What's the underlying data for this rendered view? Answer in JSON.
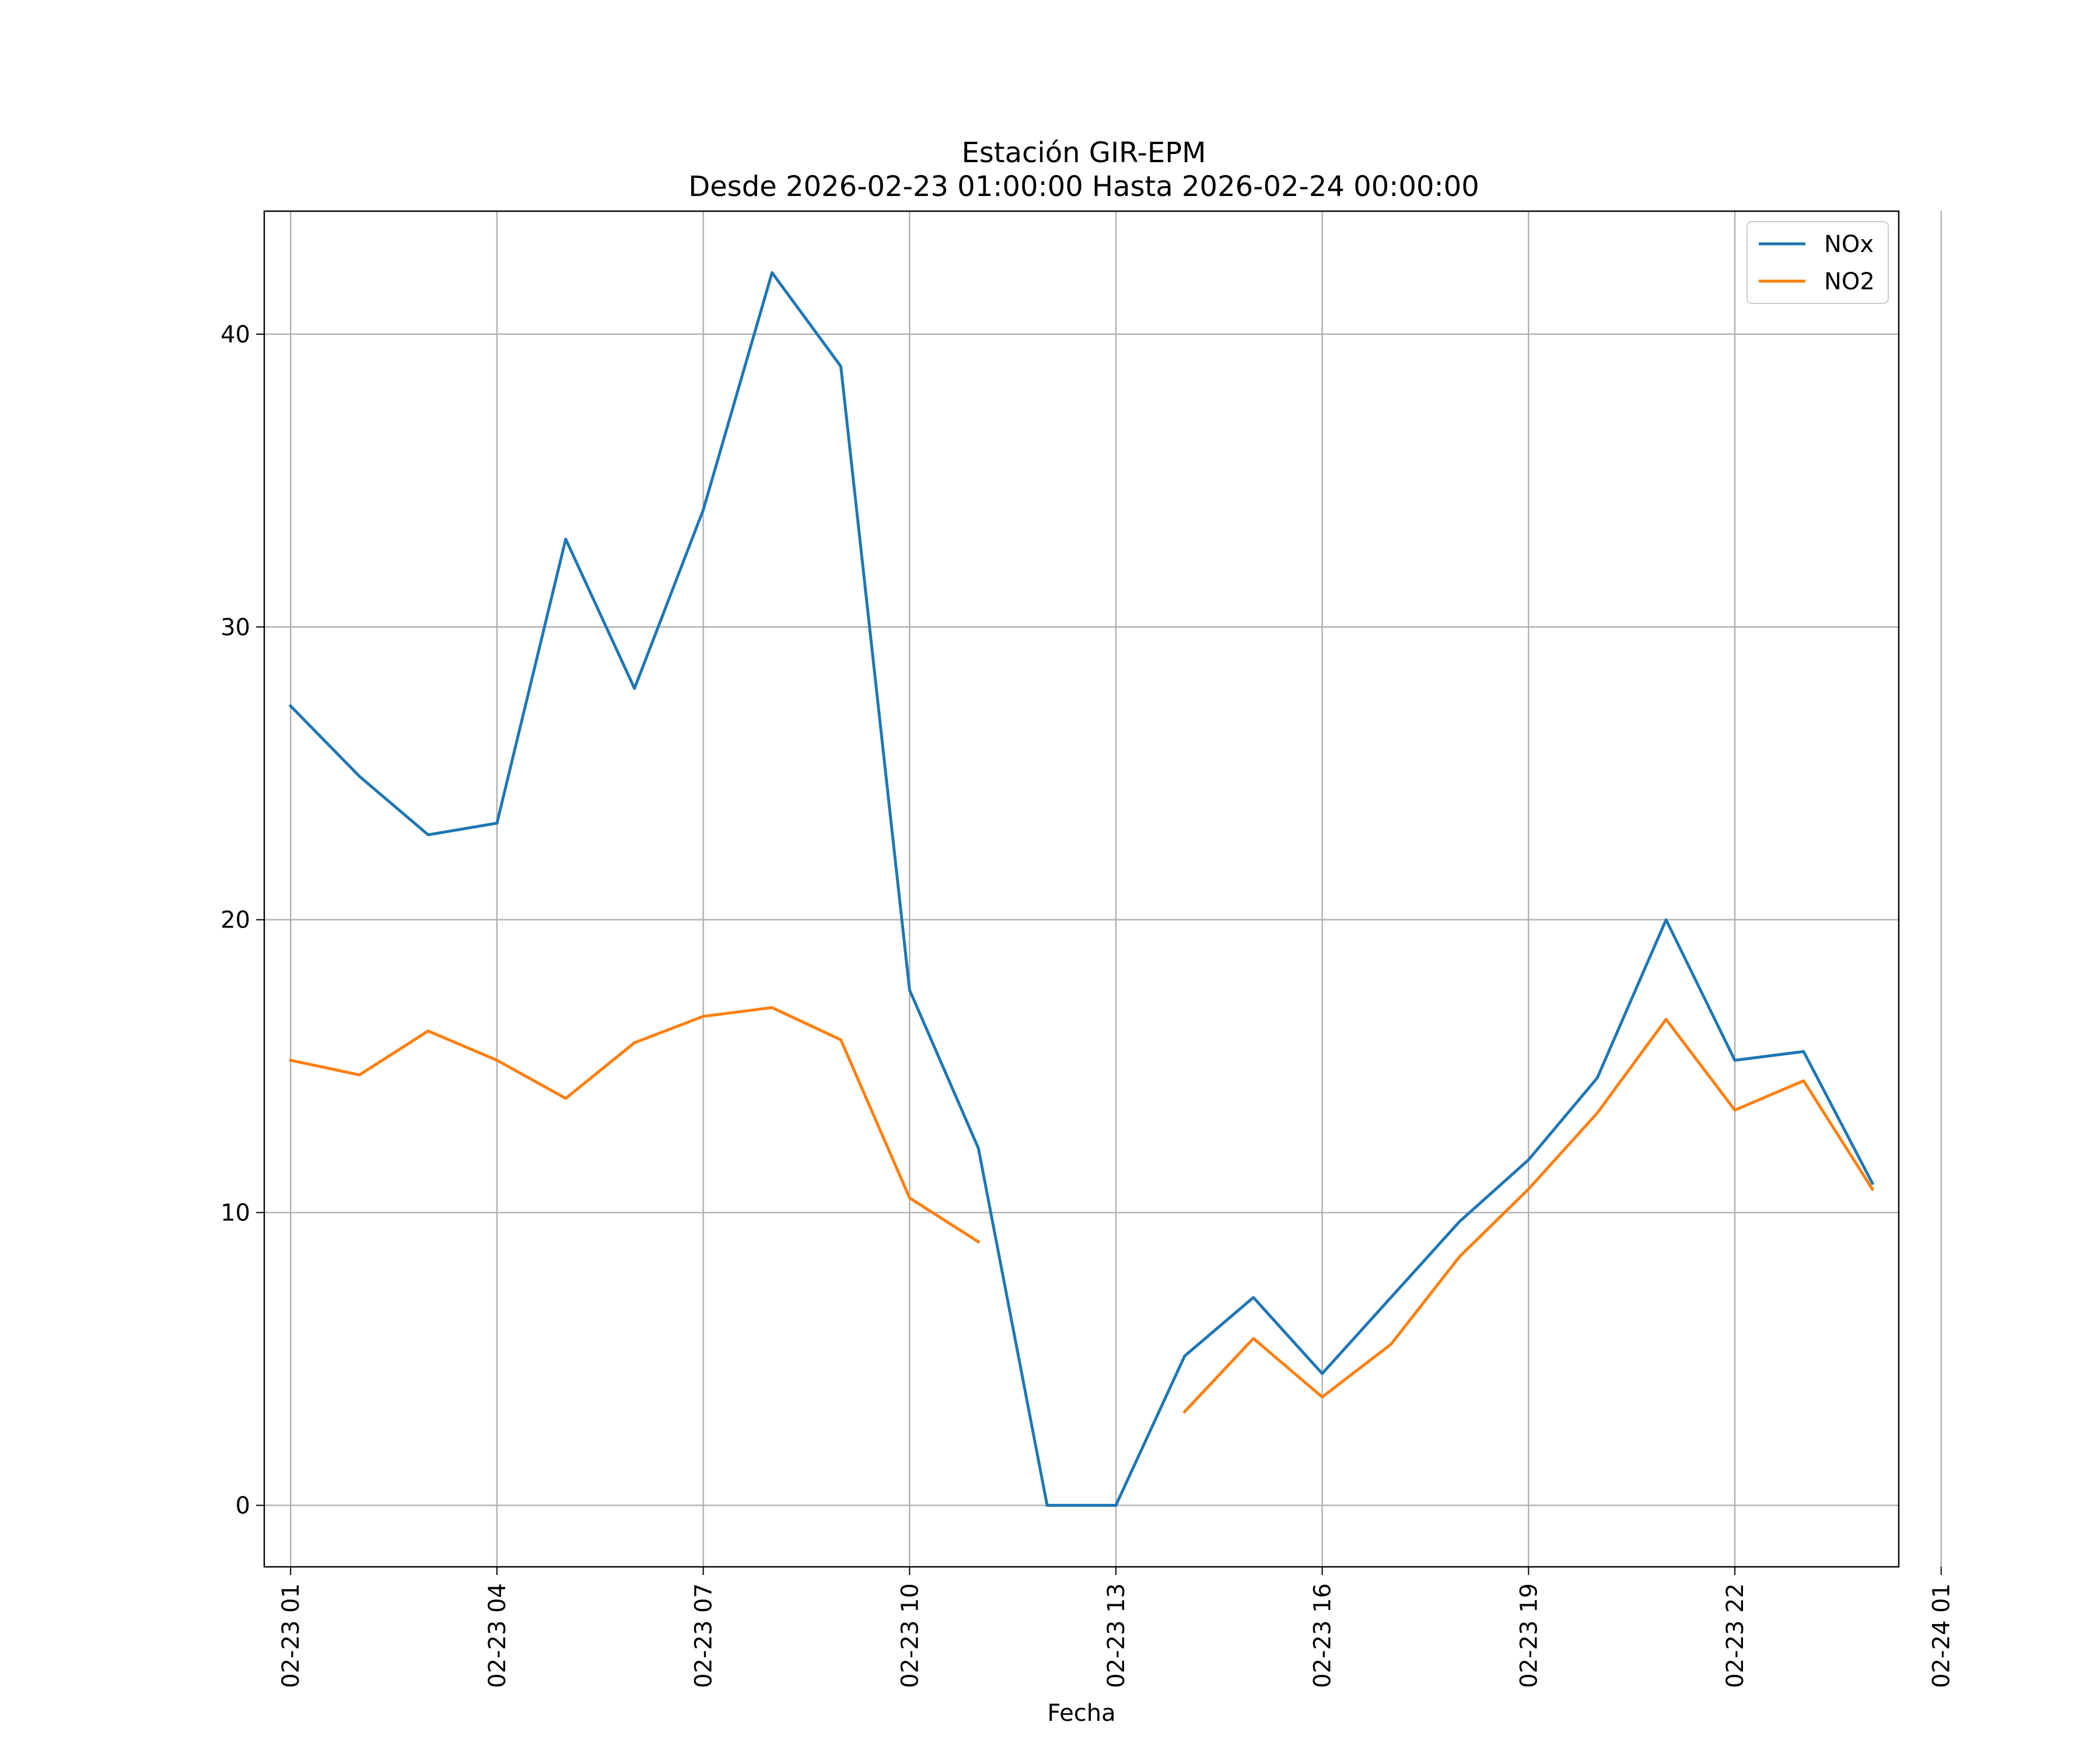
{
  "chart_data": {
    "type": "line",
    "title": "Estación GIR-EPM",
    "subtitle": "Desde 2026-02-23 01:00:00 Hasta 2026-02-24 00:00:00",
    "xlabel": "Fecha",
    "ylabel": "",
    "x": [
      "2026-02-23 01:00",
      "2026-02-23 02:00",
      "2026-02-23 03:00",
      "2026-02-23 04:00",
      "2026-02-23 05:00",
      "2026-02-23 06:00",
      "2026-02-23 07:00",
      "2026-02-23 08:00",
      "2026-02-23 09:00",
      "2026-02-23 10:00",
      "2026-02-23 11:00",
      "2026-02-23 12:00",
      "2026-02-23 13:00",
      "2026-02-23 14:00",
      "2026-02-23 15:00",
      "2026-02-23 16:00",
      "2026-02-23 17:00",
      "2026-02-23 18:00",
      "2026-02-23 19:00",
      "2026-02-23 20:00",
      "2026-02-23 21:00",
      "2026-02-23 22:00",
      "2026-02-23 23:00",
      "2026-02-24 00:00"
    ],
    "xlim": [
      "2026-02-23 00:37",
      "2026-02-24 00:23"
    ],
    "ylim": [
      -2.1,
      44.2
    ],
    "xticks": [
      "2026-02-23 01:00",
      "2026-02-23 04:00",
      "2026-02-23 07:00",
      "2026-02-23 10:00",
      "2026-02-23 13:00",
      "2026-02-23 16:00",
      "2026-02-23 19:00",
      "2026-02-23 22:00",
      "2026-02-24 01:00"
    ],
    "xtick_labels": [
      "02-23 01",
      "02-23 04",
      "02-23 07",
      "02-23 10",
      "02-23 13",
      "02-23 16",
      "02-23 19",
      "02-23 22",
      "02-24 01"
    ],
    "yticks": [
      0,
      10,
      20,
      30,
      40
    ],
    "ytick_labels": [
      "0",
      "10",
      "20",
      "30",
      "40"
    ],
    "grid": true,
    "legend_position": "top-right",
    "series": [
      {
        "name": "NOx",
        "color": "#1f77b4",
        "values": [
          27.3,
          24.9,
          22.9,
          23.3,
          33.0,
          27.9,
          34.0,
          42.1,
          38.9,
          17.6,
          12.2,
          0.0,
          0.0,
          5.1,
          7.1,
          4.5,
          7.1,
          9.7,
          11.8,
          14.6,
          20.0,
          15.2,
          15.5,
          11.0
        ]
      },
      {
        "name": "NO2",
        "color": "#ff7f0e",
        "values": [
          15.2,
          14.7,
          16.2,
          15.2,
          13.9,
          15.8,
          16.7,
          17.0,
          15.9,
          10.5,
          9.0,
          null,
          null,
          3.2,
          5.7,
          3.7,
          5.5,
          8.5,
          10.8,
          13.4,
          16.6,
          13.5,
          14.5,
          10.8
        ]
      }
    ]
  }
}
